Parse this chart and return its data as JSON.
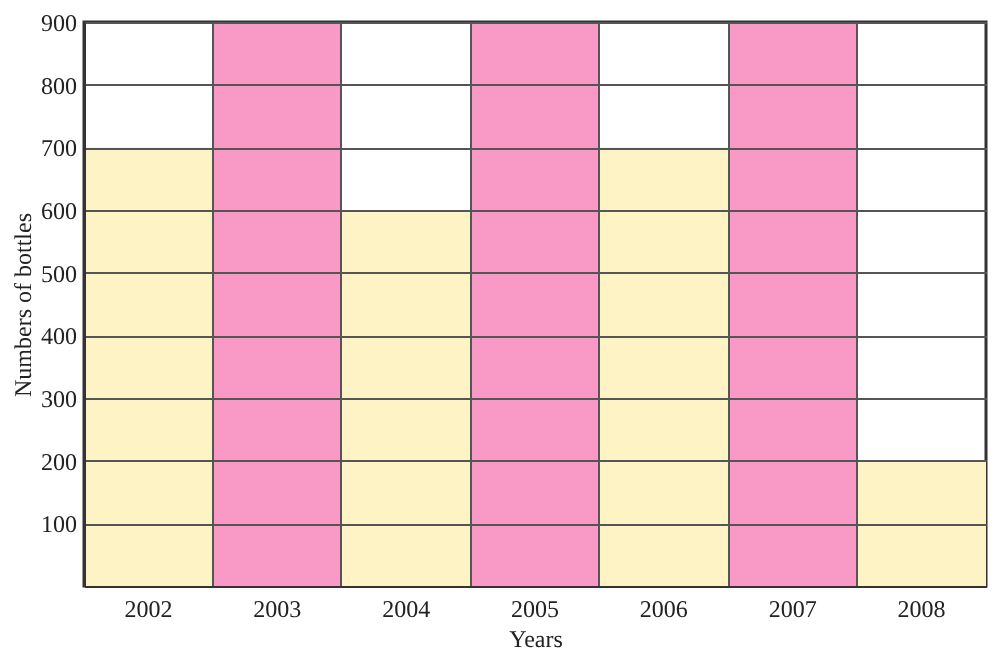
{
  "chart_data": {
    "type": "bar",
    "xlabel": "Years",
    "ylabel": "Numbers of bottles",
    "categories": [
      "2002",
      "2003",
      "2004",
      "2005",
      "2006",
      "2007",
      "2008"
    ],
    "values": [
      700,
      900,
      600,
      900,
      700,
      900,
      200
    ],
    "colors": [
      "#fdf3c4",
      "#f999c5",
      "#fdf3c4",
      "#f999c5",
      "#fdf3c4",
      "#f999c5",
      "#fdf3c4"
    ],
    "ylim": [
      0,
      900
    ],
    "yticks": [
      100,
      200,
      300,
      400,
      500,
      600,
      700,
      800,
      900
    ],
    "grid": true
  }
}
